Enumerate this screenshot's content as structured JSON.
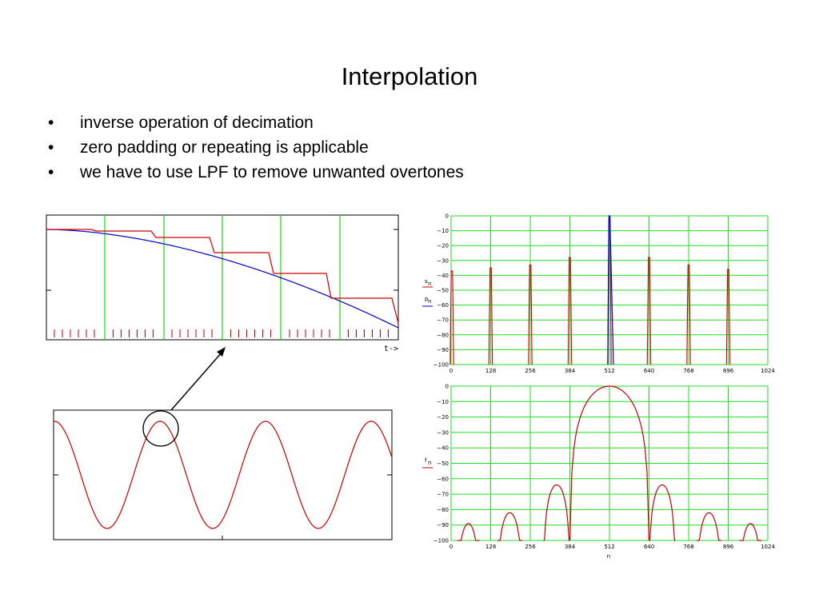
{
  "slide": {
    "title": "Interpolation",
    "bullets": [
      "inverse operation of decimation",
      "zero padding or repeating is applicable",
      "we have to use LPF to remove unwanted overtones"
    ]
  },
  "chart_data": [
    {
      "id": "time-zoom",
      "type": "line",
      "xlabel": "t->",
      "series": [
        {
          "color": "#cc0000",
          "style": "step (zero-order hold / repeating)"
        },
        {
          "color": "#0000cc",
          "style": "low-pass filtered interpolation"
        }
      ],
      "sample_period_gridlines": 6,
      "grid": "vertical green lines at original sample instants",
      "stems": "red zero-padded sample markers along bottom"
    },
    {
      "id": "time-sine",
      "type": "line",
      "series": [
        {
          "color": "#cc0000",
          "style": "sinusoid, about 3.2 periods"
        }
      ],
      "annotation": "circle around first peak with arrow to zoomed view"
    },
    {
      "id": "spectrum-upsampled",
      "type": "line",
      "x_ticks": [
        "0",
        "128",
        "256",
        "384",
        "512",
        "640",
        "768",
        "896",
        "1024"
      ],
      "y_ticks": [
        "0",
        "−10",
        "−20",
        "−30",
        "−40",
        "−50",
        "−60",
        "−70",
        "−80",
        "−90",
        "−100"
      ],
      "xlim": [
        0,
        1024
      ],
      "ylim": [
        -100,
        0
      ],
      "grid": true,
      "series": [
        {
          "name": "s_n",
          "color": "#cc0000",
          "peaks": [
            {
              "x": 0,
              "y": -37
            },
            {
              "x": 128,
              "y": -35
            },
            {
              "x": 256,
              "y": -33
            },
            {
              "x": 384,
              "y": -28
            },
            {
              "x": 512,
              "y": -2
            },
            {
              "x": 640,
              "y": -28
            },
            {
              "x": 768,
              "y": -33
            },
            {
              "x": 896,
              "y": -36
            }
          ]
        },
        {
          "name": "p_n",
          "color": "#0000cc",
          "peaks": [
            {
              "x": 512,
              "y": 0
            }
          ]
        }
      ],
      "ylabels": [
        "s_n",
        "p_n"
      ]
    },
    {
      "id": "spectrum-lpf",
      "type": "line",
      "x_ticks": [
        "0",
        "128",
        "256",
        "384",
        "512",
        "640",
        "768",
        "896",
        "1024"
      ],
      "y_ticks": [
        "0",
        "−10",
        "−20",
        "−30",
        "−40",
        "−50",
        "−60",
        "−70",
        "−80",
        "−90",
        "−100"
      ],
      "xlim": [
        0,
        1024
      ],
      "ylim": [
        -100,
        0
      ],
      "grid": true,
      "xlabel": "n",
      "ylabel": "f_n",
      "series": [
        {
          "name": "f_n",
          "color": "#cc0000",
          "lobes": [
            {
              "x0": 384,
              "x1": 640,
              "peak": 0
            },
            {
              "x0": 299,
              "x1": 384,
              "peak": -64
            },
            {
              "x0": 640,
              "x1": 725,
              "peak": -64
            },
            {
              "x0": 150,
              "x1": 230,
              "peak": -82
            },
            {
              "x0": 794,
              "x1": 874,
              "peak": -82
            },
            {
              "x0": 20,
              "x1": 92,
              "peak": -89
            },
            {
              "x0": 932,
              "x1": 1004,
              "peak": -89
            }
          ]
        }
      ]
    }
  ]
}
